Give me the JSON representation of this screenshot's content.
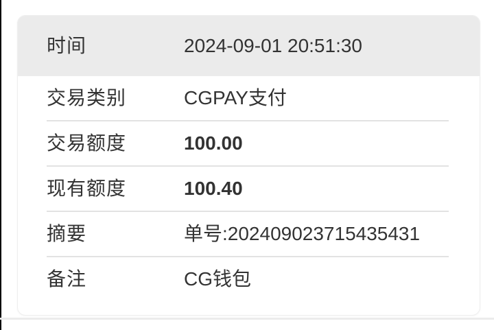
{
  "card": {
    "rows": [
      {
        "label": "时间",
        "value": "2024-09-01 20:51:30"
      },
      {
        "label": "交易类别",
        "value": "CGPAY支付"
      },
      {
        "label": "交易额度",
        "value": "100.00",
        "bold": true
      },
      {
        "label": "现有额度",
        "value": "100.40",
        "bold": true
      },
      {
        "label": "摘要",
        "value": "单号:202409023715435431"
      },
      {
        "label": "备注",
        "value": "CG钱包"
      }
    ]
  },
  "colors": {
    "header_bg": "#ebebeb",
    "card_bg": "#ffffff",
    "card_border": "#eeeeee",
    "divider": "#e2e2e2",
    "text": "#333333",
    "screen_edge": "#000000",
    "page_bg": "#ffffff"
  }
}
